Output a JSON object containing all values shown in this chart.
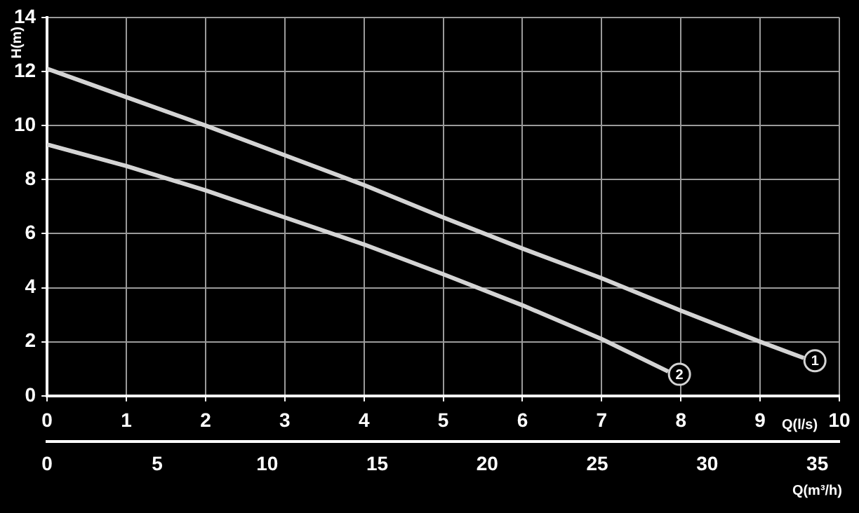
{
  "chart_data": {
    "type": "line",
    "xlabel": "Q(l/s)",
    "ylabel": "H(m)",
    "x2label": "Q(m³/h)",
    "xlim": [
      0,
      10
    ],
    "xticks": [
      0,
      1,
      2,
      3,
      4,
      5,
      6,
      7,
      8,
      9,
      10
    ],
    "x2lim": [
      0,
      36
    ],
    "x2ticks": [
      0,
      5,
      10,
      15,
      20,
      25,
      30,
      35
    ],
    "ylim": [
      0,
      14
    ],
    "yticks": [
      0,
      2,
      4,
      6,
      8,
      10,
      12,
      14
    ],
    "grid": true,
    "legend": false,
    "marker": "none",
    "line_style": "solid",
    "series": [
      {
        "name": "1",
        "color": "#d4d4d4",
        "x": [
          0,
          1,
          2,
          3,
          4,
          5,
          6,
          7,
          8,
          9,
          9.55
        ],
        "values": [
          12.1,
          11.05,
          10,
          8.9,
          7.8,
          6.6,
          5.45,
          4.35,
          3.15,
          2,
          1.4
        ]
      },
      {
        "name": "2",
        "color": "#d4d4d4",
        "x": [
          0,
          1,
          2,
          3,
          4,
          5,
          6,
          7,
          7.84
        ],
        "values": [
          9.3,
          8.5,
          7.6,
          6.6,
          5.6,
          4.5,
          3.35,
          2.1,
          0.9
        ]
      }
    ]
  }
}
